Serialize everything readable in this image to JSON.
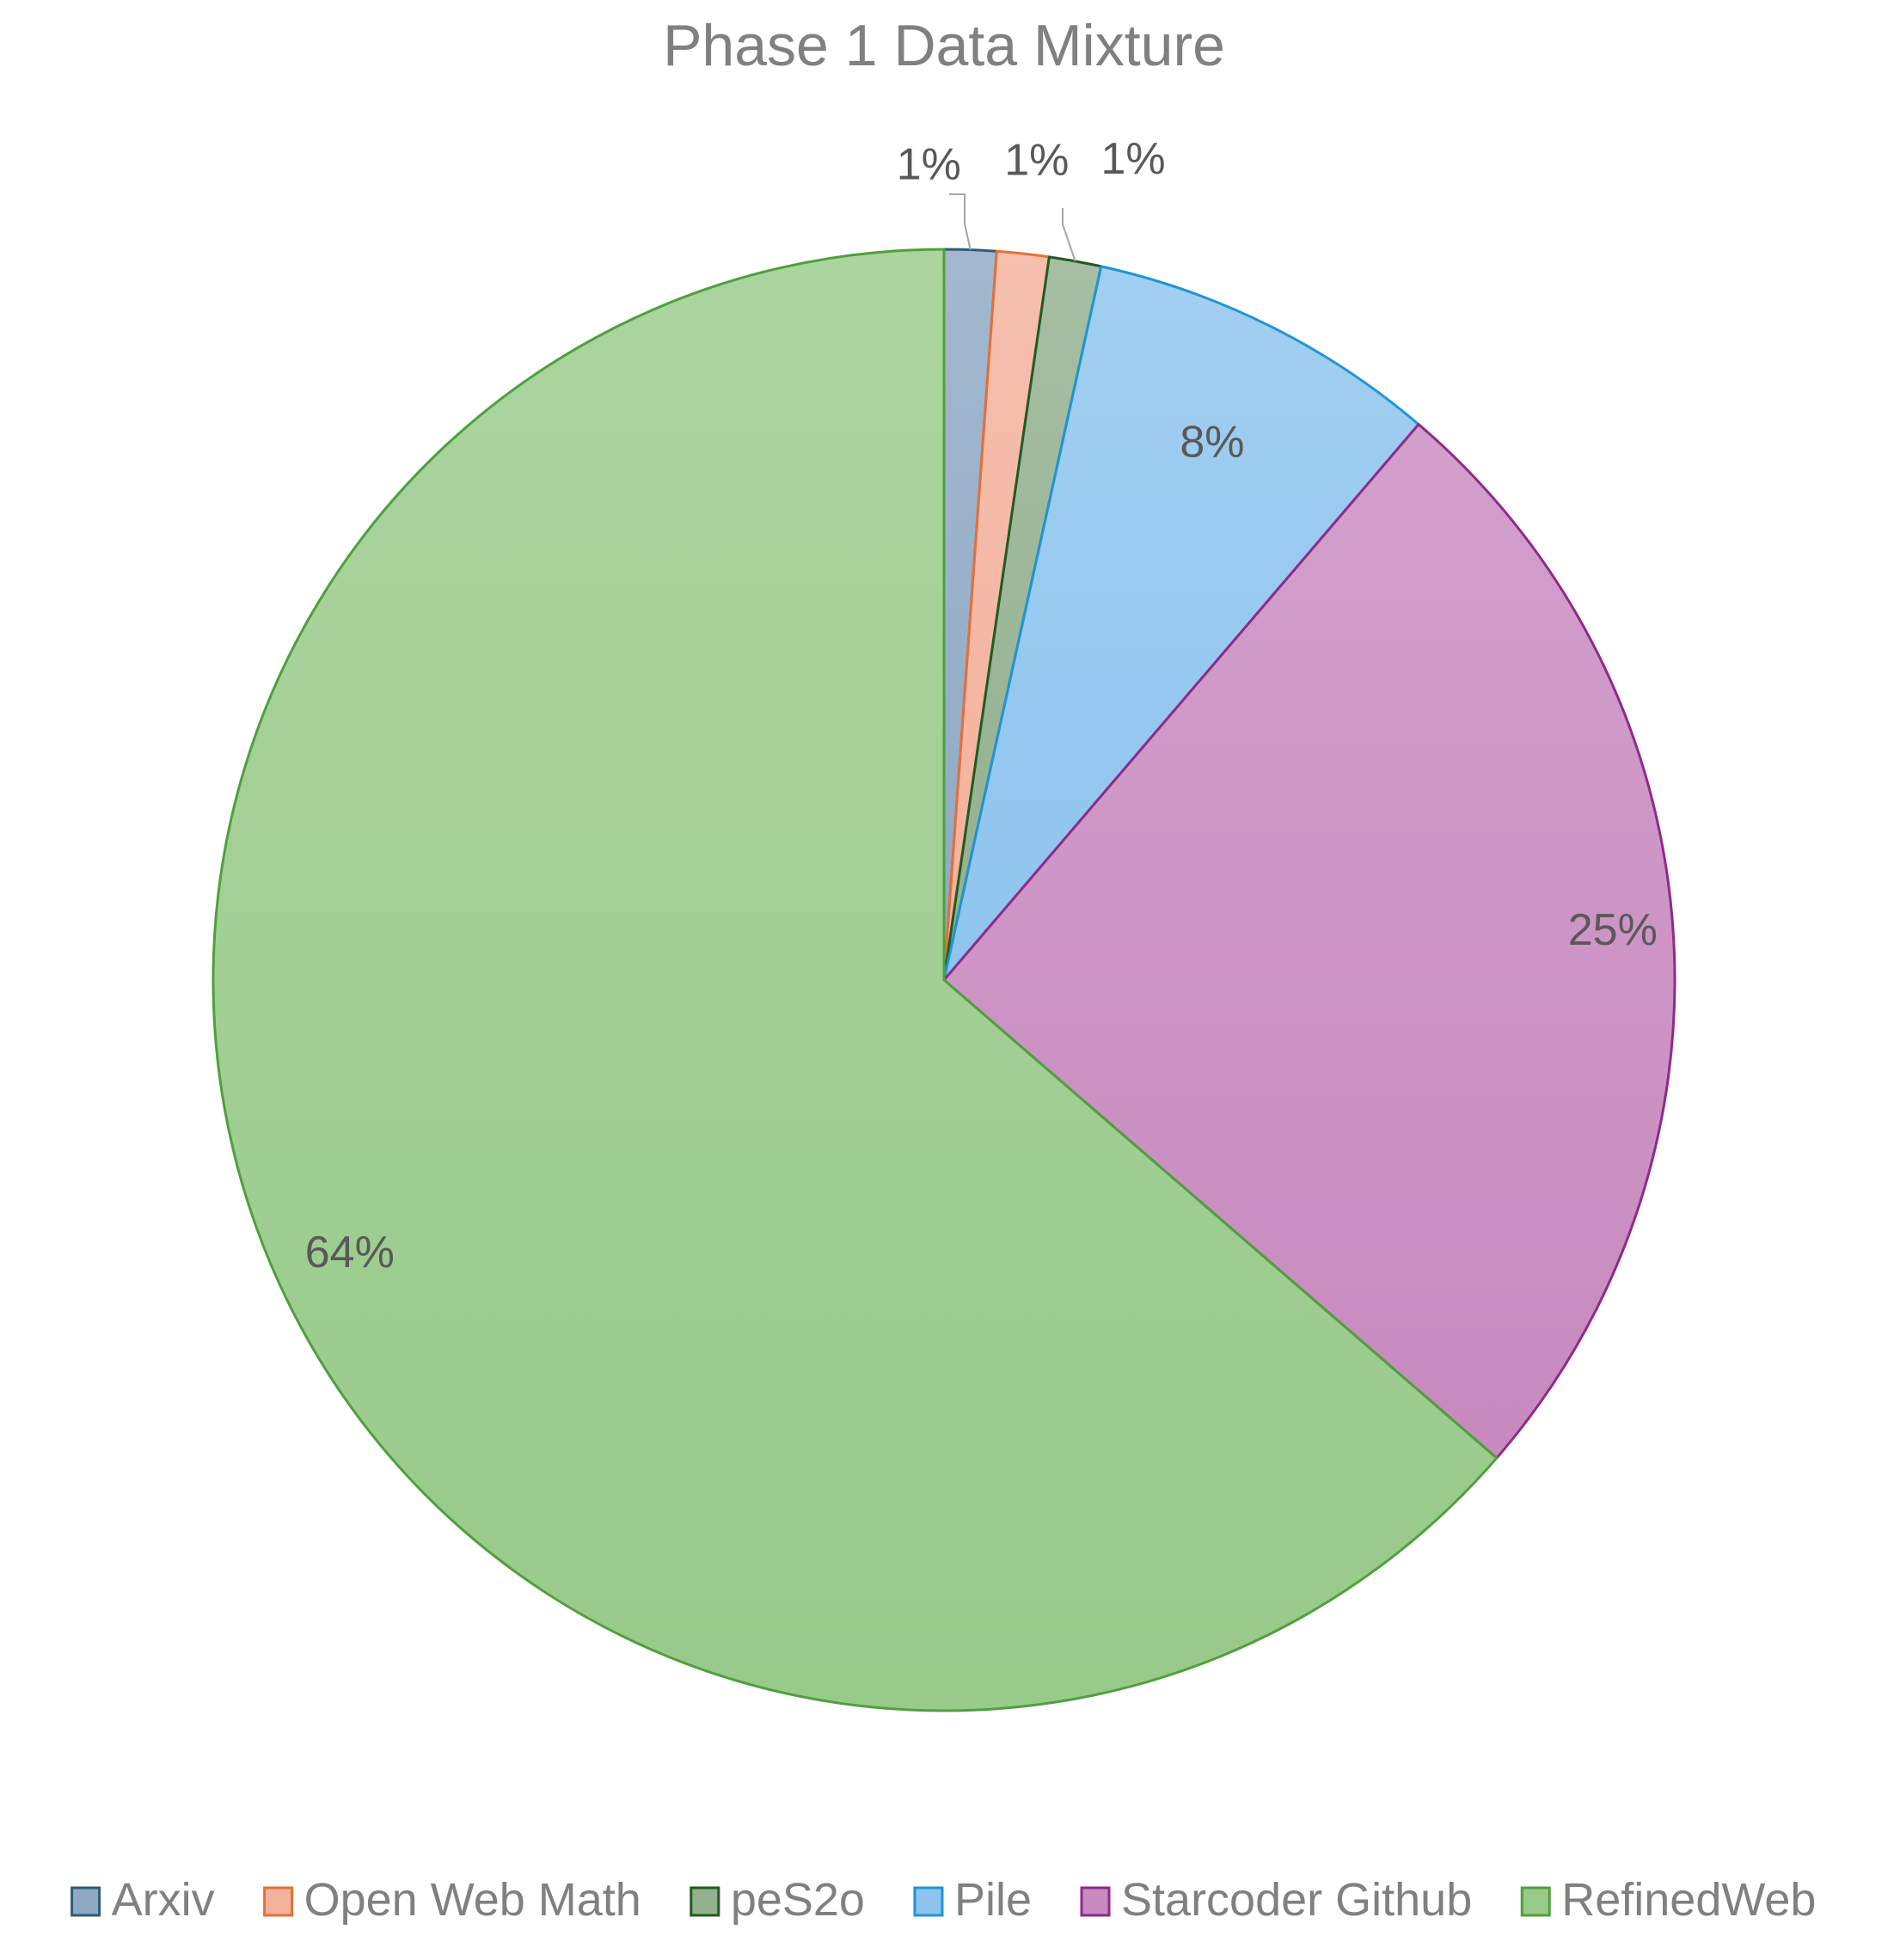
{
  "chart_data": {
    "type": "pie",
    "title": "Phase 1 Data Mixture",
    "slices": [
      {
        "name": "Arxiv",
        "value": 1.15,
        "label": "1%",
        "color": "#8FA9C4",
        "stroke": "#2E5C7A",
        "leader": true
      },
      {
        "name": "Open Web Math",
        "value": 1.15,
        "label": "1%",
        "color": "#F4B19C",
        "stroke": "#E4703A",
        "leader": false
      },
      {
        "name": "peS2o",
        "value": 1.15,
        "label": "1%",
        "color": "#93B08F",
        "stroke": "#1F5C1F",
        "leader": true
      },
      {
        "name": "Pile",
        "value": 7.8,
        "label": "8%",
        "color": "#8EC4EE",
        "stroke": "#1F95D4",
        "leader": false
      },
      {
        "name": "Starcoder Github",
        "value": 25.1,
        "label": "25%",
        "color": "#C88ABF",
        "stroke": "#8E2A8C",
        "leader": false
      },
      {
        "name": "RefinedWeb",
        "value": 63.65,
        "label": "64%",
        "color": "#98CA8A",
        "stroke": "#4FA03C",
        "leader": false
      }
    ],
    "legend_position": "bottom"
  }
}
